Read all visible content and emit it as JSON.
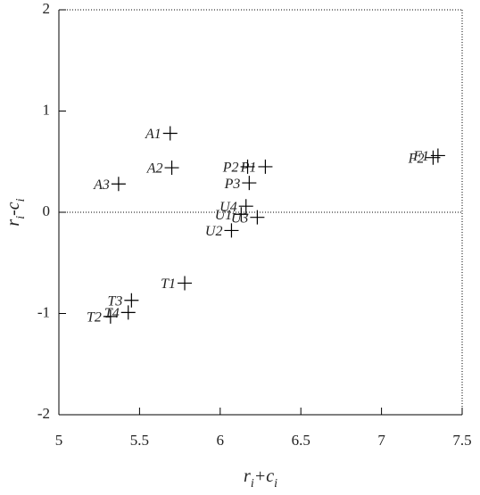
{
  "chart_data": {
    "type": "scatter",
    "x_label": "ri+ci",
    "y_label": "ri-ci",
    "xlim": [
      5,
      7.5
    ],
    "ylim": [
      -2,
      2
    ],
    "xticks": [
      5,
      5.5,
      6,
      6.5,
      7,
      7.5
    ],
    "yticks": [
      -2,
      -1,
      0,
      1,
      2
    ],
    "color": "#000000",
    "labels": [
      "A1",
      "A2",
      "A3",
      "P1",
      "P2",
      "P3",
      "U1",
      "U2",
      "U3",
      "U4",
      "T1",
      "T2",
      "T3",
      "T4",
      "F1",
      "F2"
    ],
    "x": [
      5.69,
      5.7,
      5.37,
      6.28,
      6.17,
      6.18,
      6.13,
      6.07,
      6.23,
      6.16,
      5.78,
      5.32,
      5.45,
      5.43,
      7.35,
      7.32
    ],
    "y": [
      0.78,
      0.44,
      0.28,
      0.45,
      0.45,
      0.29,
      -0.02,
      -0.18,
      -0.05,
      0.06,
      -0.7,
      -1.03,
      -0.87,
      -0.99,
      0.56,
      0.54
    ]
  }
}
